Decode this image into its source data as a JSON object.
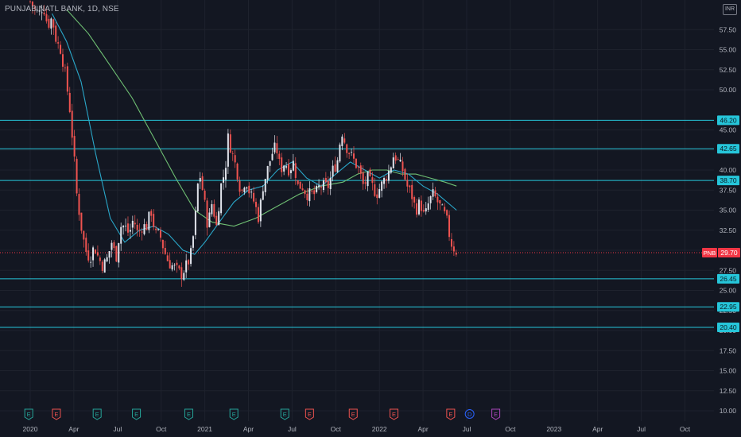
{
  "header": {
    "title": "PUNJAB NATL BANK, 1D, NSE",
    "currency": "INR"
  },
  "colors": {
    "background": "#131722",
    "grid": "#1e222d",
    "axis_text": "#b2b5be",
    "up": "#e0e3eb",
    "down": "#ef5350",
    "level": "#26c6da",
    "ma_fast": "#2aa7c9",
    "ma_slow": "#6fbf73",
    "price": "#f23645",
    "earnings": "#26a69a",
    "earnings_neg": "#ef5350",
    "dividend": "#2962ff",
    "split": "#ab47bc"
  },
  "chart_data": {
    "type": "candlestick",
    "title": "PUNJAB NATL BANK, 1D, NSE",
    "symbol": "PNB",
    "ylim": [
      10,
      60
    ],
    "y_ticks": [
      "10.00",
      "12.50",
      "15.00",
      "17.50",
      "20.00",
      "22.50",
      "25.00",
      "27.50",
      "30.00",
      "32.50",
      "35.00",
      "37.50",
      "40.00",
      "42.50",
      "45.00",
      "50.00",
      "52.50",
      "55.00",
      "57.50"
    ],
    "x_ticks": [
      "2020",
      "Apr",
      "Jul",
      "Oct",
      "2021",
      "Apr",
      "Jul",
      "Oct",
      "2022",
      "Apr",
      "Jul",
      "Oct",
      "2023",
      "Apr",
      "Jul",
      "Oct"
    ],
    "x_tick_months": [
      0,
      3,
      6,
      9,
      12,
      15,
      18,
      21,
      24,
      27,
      30,
      33,
      36,
      39,
      42,
      45
    ],
    "last_price": 29.7,
    "last_price_label": "29.70",
    "levels": [
      {
        "value": 46.2,
        "label": "46.20"
      },
      {
        "value": 42.65,
        "label": "42.65"
      },
      {
        "value": 38.7,
        "label": "38.70"
      },
      {
        "value": 26.45,
        "label": "26.45"
      },
      {
        "value": 22.95,
        "label": "22.95"
      },
      {
        "value": 20.4,
        "label": "20.40"
      }
    ],
    "price_path": [
      [
        0,
        61
      ],
      [
        0.3,
        60
      ],
      [
        0.6,
        59.5
      ],
      [
        0.9,
        60.5
      ],
      [
        1.2,
        58
      ],
      [
        1.5,
        59
      ],
      [
        1.8,
        56
      ],
      [
        2.1,
        55
      ],
      [
        2.4,
        52
      ],
      [
        2.7,
        48
      ],
      [
        3.0,
        42
      ],
      [
        3.2,
        37
      ],
      [
        3.5,
        33
      ],
      [
        3.8,
        30
      ],
      [
        4.1,
        29
      ],
      [
        4.4,
        30.5
      ],
      [
        4.7,
        29
      ],
      [
        5.0,
        28
      ],
      [
        5.3,
        29
      ],
      [
        5.6,
        31
      ],
      [
        5.9,
        29
      ],
      [
        6.2,
        33
      ],
      [
        6.5,
        33
      ],
      [
        6.8,
        32
      ],
      [
        7.1,
        34
      ],
      [
        7.4,
        32
      ],
      [
        7.7,
        33
      ],
      [
        8.0,
        33
      ],
      [
        8.3,
        35
      ],
      [
        8.6,
        32
      ],
      [
        8.9,
        32
      ],
      [
        9.2,
        30
      ],
      [
        9.5,
        28.5
      ],
      [
        9.8,
        28
      ],
      [
        10.1,
        27.5
      ],
      [
        10.4,
        27
      ],
      [
        10.7,
        28
      ],
      [
        11.0,
        29
      ],
      [
        11.3,
        33
      ],
      [
        11.6,
        40
      ],
      [
        11.9,
        37
      ],
      [
        12.2,
        33
      ],
      [
        12.5,
        36
      ],
      [
        12.8,
        33
      ],
      [
        13.1,
        38
      ],
      [
        13.4,
        40
      ],
      [
        13.6,
        44
      ],
      [
        13.9,
        42
      ],
      [
        14.2,
        40
      ],
      [
        14.5,
        37
      ],
      [
        14.8,
        39
      ],
      [
        15.1,
        37
      ],
      [
        15.4,
        36
      ],
      [
        15.7,
        34
      ],
      [
        16.0,
        38
      ],
      [
        16.3,
        40
      ],
      [
        16.6,
        42
      ],
      [
        16.9,
        43
      ],
      [
        17.2,
        40
      ],
      [
        17.5,
        41
      ],
      [
        17.8,
        40
      ],
      [
        18.1,
        41
      ],
      [
        18.4,
        38
      ],
      [
        18.7,
        38
      ],
      [
        19.0,
        37
      ],
      [
        19.3,
        37
      ],
      [
        19.6,
        37
      ],
      [
        19.9,
        38
      ],
      [
        20.2,
        38
      ],
      [
        20.5,
        38
      ],
      [
        20.8,
        40
      ],
      [
        21.1,
        41
      ],
      [
        21.4,
        45
      ],
      [
        21.7,
        43
      ],
      [
        22.0,
        42
      ],
      [
        22.3,
        41
      ],
      [
        22.6,
        40
      ],
      [
        22.9,
        38
      ],
      [
        23.2,
        39
      ],
      [
        23.5,
        38
      ],
      [
        23.8,
        37
      ],
      [
        24.1,
        38
      ],
      [
        24.4,
        39
      ],
      [
        24.7,
        40
      ],
      [
        25.0,
        42
      ],
      [
        25.3,
        41
      ],
      [
        25.6,
        40
      ],
      [
        25.9,
        38
      ],
      [
        26.2,
        37
      ],
      [
        26.5,
        35
      ],
      [
        26.8,
        36
      ],
      [
        27.1,
        34
      ],
      [
        27.4,
        36
      ],
      [
        27.7,
        37
      ],
      [
        28.0,
        36
      ],
      [
        28.3,
        35
      ],
      [
        28.6,
        34
      ],
      [
        28.9,
        31
      ],
      [
        29.2,
        30
      ],
      [
        29.4,
        29.7
      ]
    ],
    "ma_fast": [
      [
        1.5,
        59.5
      ],
      [
        2.5,
        56
      ],
      [
        3.5,
        51
      ],
      [
        4.5,
        42
      ],
      [
        5.5,
        34
      ],
      [
        6.5,
        31
      ],
      [
        7.5,
        32.5
      ],
      [
        8.5,
        33
      ],
      [
        9.5,
        32
      ],
      [
        10.5,
        30
      ],
      [
        11.3,
        29.5
      ],
      [
        12,
        31
      ],
      [
        13,
        33.5
      ],
      [
        14,
        36
      ],
      [
        15,
        37.5
      ],
      [
        16,
        38
      ],
      [
        17,
        40
      ],
      [
        18,
        41
      ],
      [
        19,
        39
      ],
      [
        20,
        38
      ],
      [
        21,
        39.5
      ],
      [
        22,
        41
      ],
      [
        23,
        40
      ],
      [
        24,
        39
      ],
      [
        25,
        40
      ],
      [
        26,
        39.5
      ],
      [
        27,
        38
      ],
      [
        28,
        37
      ],
      [
        29.3,
        35
      ]
    ],
    "ma_slow": [
      [
        2.5,
        60
      ],
      [
        4,
        57
      ],
      [
        5.5,
        53
      ],
      [
        7,
        49
      ],
      [
        8.5,
        44
      ],
      [
        10,
        39
      ],
      [
        11.3,
        35
      ],
      [
        12.5,
        33.5
      ],
      [
        14,
        33
      ],
      [
        15.5,
        34
      ],
      [
        17,
        35.5
      ],
      [
        18.5,
        37
      ],
      [
        20,
        38
      ],
      [
        21.5,
        38.5
      ],
      [
        22.5,
        39.5
      ],
      [
        23.5,
        40
      ],
      [
        24.5,
        40
      ],
      [
        25.5,
        39.5
      ],
      [
        26.5,
        39.5
      ],
      [
        27.5,
        39
      ],
      [
        28.5,
        38.5
      ],
      [
        29.3,
        38
      ]
    ],
    "events": [
      {
        "type": "earnings",
        "month": -0.1,
        "label": "E"
      },
      {
        "type": "earnings_neg",
        "month": 1.8,
        "label": "E"
      },
      {
        "type": "earnings",
        "month": 4.6,
        "label": "E"
      },
      {
        "type": "earnings",
        "month": 7.3,
        "label": "E"
      },
      {
        "type": "earnings",
        "month": 10.9,
        "label": "E"
      },
      {
        "type": "earnings",
        "month": 14.0,
        "label": "E"
      },
      {
        "type": "earnings",
        "month": 17.5,
        "label": "E"
      },
      {
        "type": "earnings_neg",
        "month": 19.2,
        "label": "E"
      },
      {
        "type": "earnings_neg",
        "month": 22.2,
        "label": "E"
      },
      {
        "type": "earnings_neg",
        "month": 25.0,
        "label": "E"
      },
      {
        "type": "earnings_neg",
        "month": 28.9,
        "label": "E"
      },
      {
        "type": "dividend",
        "month": 30.2,
        "label": "D"
      },
      {
        "type": "split",
        "month": 32.0,
        "label": "E"
      }
    ]
  }
}
